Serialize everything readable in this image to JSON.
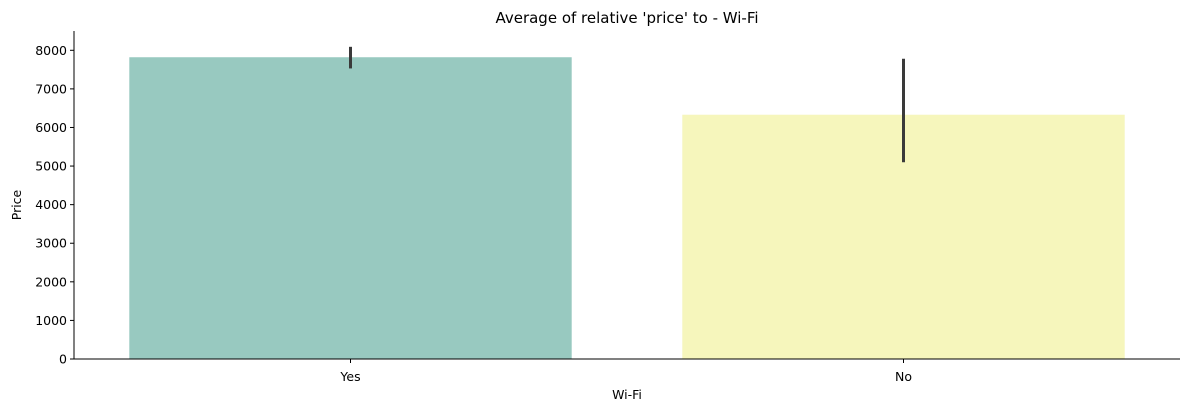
{
  "chart_data": {
    "type": "bar",
    "title": "Average of relative 'price' to - Wi-Fi",
    "xlabel": "Wi-Fi",
    "ylabel": "Price",
    "categories": [
      "Yes",
      "No"
    ],
    "values": [
      7820,
      6330
    ],
    "error_bars": [
      {
        "low": 7530,
        "high": 8090
      },
      {
        "low": 5100,
        "high": 7780
      }
    ],
    "colors": [
      "#98c9c0",
      "#f6f6bc"
    ],
    "error_bar_color": "#3a3a3a",
    "ylim": [
      0,
      8500
    ],
    "yticks": [
      0,
      1000,
      2000,
      3000,
      4000,
      5000,
      6000,
      7000,
      8000
    ],
    "grid": false,
    "legend": "none"
  }
}
